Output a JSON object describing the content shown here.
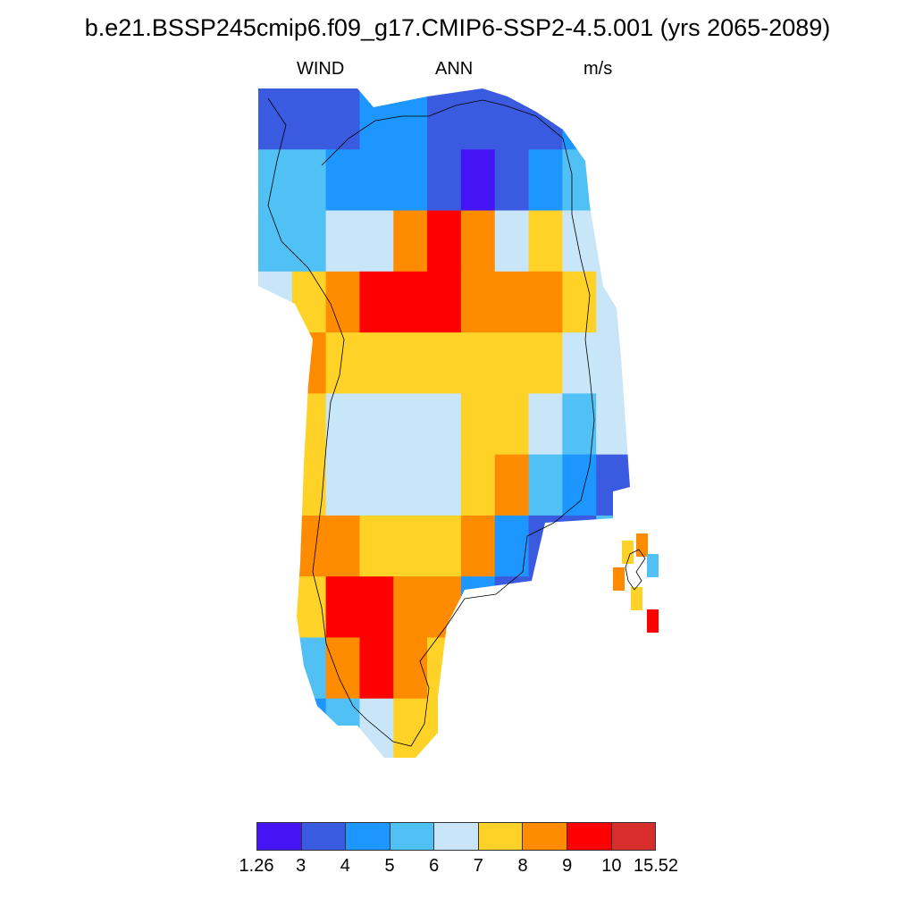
{
  "title": "b.e21.BSSP245cmip6.f09_g17.CMIP6-SSP2-4.5.001 (yrs 2065-2089)",
  "subtitle": {
    "variable": "WIND",
    "season": "ANN",
    "units": "m/s"
  },
  "colorbar": {
    "colors": [
      "#4414f5",
      "#3a5be0",
      "#1e96ff",
      "#50c0f5",
      "#c8e6f8",
      "#ffd228",
      "#ff8c00",
      "#ff0000",
      "#d72d2d"
    ],
    "tick_labels": [
      "1.26",
      "3",
      "4",
      "5",
      "6",
      "7",
      "8",
      "9",
      "10",
      "15.52"
    ]
  },
  "map": {
    "region": "Greenland",
    "field_columns": [
      [
        "#3a5be0",
        "#3a5be0",
        "#3a5be0",
        "#1e96ff",
        "#1e96ff",
        "#3a5be0",
        "#3a5be0",
        "#3a5be0",
        "#3a5be0",
        "#1e96ff",
        "#50c0f5"
      ],
      [
        "#50c0f5",
        "#50c0f5",
        "#1e96ff",
        "#1e96ff",
        "#1e96ff",
        "#3a5be0",
        "#4414f5",
        "#3a5be0",
        "#1e96ff",
        "#50c0f5",
        "#c8e6f8"
      ],
      [
        "#50c0f5",
        "#50c0f5",
        "#c8e6f8",
        "#c8e6f8",
        "#ff8c00",
        "#ff0000",
        "#ff8c00",
        "#c8e6f8",
        "#ffd228",
        "#c8e6f8",
        "#c8e6f8"
      ],
      [
        "#c8e6f8",
        "#ffd228",
        "#ff8c00",
        "#ff0000",
        "#ff0000",
        "#ff0000",
        "#ff8c00",
        "#ff8c00",
        "#ff8c00",
        "#ffd228",
        "#c8e6f8"
      ],
      [
        "#ff8c00",
        "#ff8c00",
        "#ffd228",
        "#ffd228",
        "#ffd228",
        "#ffd228",
        "#ffd228",
        "#ffd228",
        "#ffd228",
        "#c8e6f8",
        "#c8e6f8"
      ],
      [
        "#ffd228",
        "#ffd228",
        "#c8e6f8",
        "#c8e6f8",
        "#c8e6f8",
        "#c8e6f8",
        "#ffd228",
        "#ffd228",
        "#c8e6f8",
        "#50c0f5",
        "#c8e6f8"
      ],
      [
        "#ffd228",
        "#ffd228",
        "#c8e6f8",
        "#c8e6f8",
        "#c8e6f8",
        "#c8e6f8",
        "#ffd228",
        "#ff8c00",
        "#50c0f5",
        "#1e96ff",
        "#3a5be0"
      ],
      [
        "#ff8c00",
        "#ff8c00",
        "#ff8c00",
        "#ffd228",
        "#ffd228",
        "#ffd228",
        "#ff8c00",
        "#1e96ff",
        "#3a5be0",
        "#3a5be0",
        "#50c0f5"
      ],
      [
        "#50c0f5",
        "#ffd228",
        "#ff0000",
        "#ff0000",
        "#ff8c00",
        "#ff8c00",
        "#1e96ff",
        "#3a5be0",
        "#3a5be0",
        "#1e96ff",
        "#c8e6f8"
      ],
      [
        "#1e96ff",
        "#50c0f5",
        "#ff8c00",
        "#ff0000",
        "#ff8c00",
        "#ffd228",
        "#1e96ff",
        "#3a5be0",
        "#1e96ff",
        "#50c0f5",
        "#c8e6f8"
      ],
      [
        "#3a5be0",
        "#1e96ff",
        "#50c0f5",
        "#c8e6f8",
        "#ffd228",
        "#ffd228",
        "#ff8c00",
        "#1e96ff",
        "#50c0f5",
        "#c8e6f8",
        "#c8e6f8"
      ]
    ],
    "jan_mayen_cells": [
      "#ffd228",
      "#ff8c00",
      "#50c0f5",
      "#ff8c00",
      "#ffd228",
      "#ff0000"
    ]
  }
}
